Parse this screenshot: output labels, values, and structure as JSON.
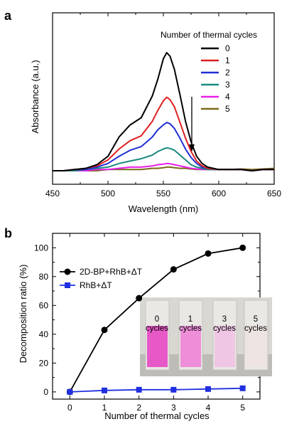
{
  "chart_data": [
    {
      "panel": "a",
      "type": "line",
      "xlabel": "Wavelength (nm)",
      "ylabel": "Absorbance (a.u.)",
      "xlim": [
        450,
        650
      ],
      "xticks": [
        450,
        500,
        550,
        600,
        650
      ],
      "yticks": [],
      "legend_title": "Number of thermal cycles",
      "legend_position": "top-right",
      "arrow_note": "downward arrow near 574 nm indicating decreasing absorbance",
      "x": [
        450,
        460,
        470,
        480,
        490,
        500,
        510,
        520,
        530,
        540,
        545,
        550,
        553,
        556,
        560,
        565,
        570,
        575,
        580,
        585,
        590,
        600,
        610,
        620,
        630,
        640,
        650
      ],
      "series": [
        {
          "name": "0",
          "color": "#000000",
          "values": [
            0.0,
            0.0,
            0.01,
            0.02,
            0.05,
            0.12,
            0.28,
            0.38,
            0.44,
            0.62,
            0.76,
            0.93,
            0.98,
            0.95,
            0.84,
            0.63,
            0.41,
            0.24,
            0.12,
            0.06,
            0.03,
            0.01,
            0.01,
            0.01,
            0.0,
            0.01,
            0.01
          ]
        },
        {
          "name": "1",
          "color": "#e02020",
          "values": [
            0.0,
            0.0,
            0.01,
            0.02,
            0.04,
            0.09,
            0.18,
            0.25,
            0.29,
            0.41,
            0.5,
            0.58,
            0.61,
            0.59,
            0.53,
            0.4,
            0.27,
            0.16,
            0.08,
            0.04,
            0.02,
            0.01,
            0.01,
            0.01,
            0.0,
            0.01,
            0.01
          ]
        },
        {
          "name": "2",
          "color": "#1f2fd6",
          "values": [
            0.0,
            0.0,
            0.01,
            0.01,
            0.03,
            0.06,
            0.12,
            0.17,
            0.2,
            0.28,
            0.34,
            0.38,
            0.4,
            0.39,
            0.35,
            0.27,
            0.18,
            0.11,
            0.06,
            0.03,
            0.02,
            0.01,
            0.01,
            0.01,
            0.0,
            0.01,
            0.01
          ]
        },
        {
          "name": "3",
          "color": "#1a8a80",
          "values": [
            0.0,
            0.0,
            0.0,
            0.01,
            0.02,
            0.03,
            0.06,
            0.08,
            0.1,
            0.13,
            0.16,
            0.18,
            0.19,
            0.185,
            0.17,
            0.13,
            0.09,
            0.05,
            0.03,
            0.02,
            0.01,
            0.01,
            0.01,
            0.01,
            0.0,
            0.01,
            0.01
          ]
        },
        {
          "name": "4",
          "color": "#e81ee8",
          "values": [
            0.0,
            0.0,
            0.0,
            0.0,
            0.01,
            0.01,
            0.02,
            0.03,
            0.03,
            0.04,
            0.05,
            0.055,
            0.06,
            0.058,
            0.05,
            0.04,
            0.03,
            0.02,
            0.015,
            0.01,
            0.01,
            0.01,
            0.01,
            0.01,
            0.0,
            0.01,
            0.01
          ]
        },
        {
          "name": "5",
          "color": "#7a6a1a",
          "values": [
            0.0,
            0.0,
            0.0,
            0.0,
            0.0,
            0.01,
            0.01,
            0.01,
            0.01,
            0.02,
            0.02,
            0.025,
            0.03,
            0.03,
            0.025,
            0.02,
            0.02,
            0.015,
            0.01,
            0.01,
            0.01,
            0.01,
            0.01,
            0.015,
            0.01,
            0.015,
            0.02
          ]
        }
      ]
    },
    {
      "panel": "b",
      "type": "line",
      "xlabel": "Number of thermal cycles",
      "ylabel": "Decomposition ratio (%)",
      "xlim": [
        -0.5,
        5.5
      ],
      "ylim": [
        -5,
        110
      ],
      "xticks": [
        0,
        1,
        2,
        3,
        4,
        5
      ],
      "yticks": [
        0,
        20,
        40,
        60,
        80,
        100
      ],
      "legend_position": "top-left",
      "x": [
        0,
        1,
        2,
        3,
        4,
        5
      ],
      "series": [
        {
          "name": "2D-BP+RhB+ΔT",
          "color": "#000000",
          "marker": "circle",
          "values": [
            0,
            43,
            65,
            85,
            96,
            100
          ]
        },
        {
          "name": "RhB+ΔT",
          "color": "#1f2fe0",
          "marker": "square",
          "values": [
            0,
            1,
            1.5,
            1.5,
            2,
            2.5
          ]
        }
      ],
      "inset": {
        "type": "photo",
        "description": "photo of four cuvettes with decreasing pink color",
        "labels": [
          "0\ncycles",
          "1\ncycles",
          "3\ncycles",
          "5\ncycles"
        ],
        "colors": [
          "#e659c6",
          "#ee8ed8",
          "#efc6e4",
          "#ede4e2"
        ]
      }
    }
  ]
}
